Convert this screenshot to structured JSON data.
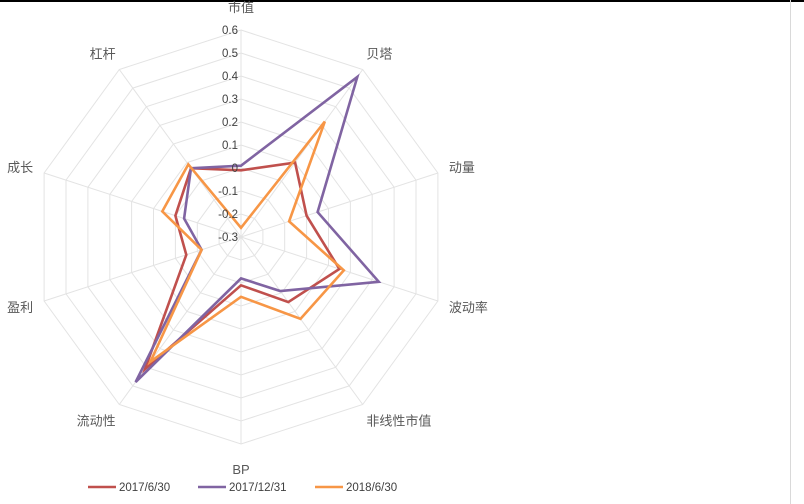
{
  "chart_data": {
    "type": "radar",
    "categories": [
      "市值",
      "贝塔",
      "动量",
      "波动率",
      "非线性市值",
      "BP",
      "流动性",
      "盈利",
      "成长",
      "杠杆"
    ],
    "rticks": [
      "0.6",
      "0.5",
      "0.4",
      "0.3",
      "0.2",
      "0.1",
      "0",
      "-0.1",
      "-0.2",
      "-0.3"
    ],
    "rlim": [
      -0.3,
      0.6
    ],
    "grid": true,
    "legend_position": "bottom",
    "series": [
      {
        "name": "2017/6/30",
        "color": "#c0504d",
        "values": [
          -0.01,
          0.1,
          0.0,
          0.15,
          0.05,
          -0.09,
          0.41,
          -0.05,
          0.0,
          0.07
        ]
      },
      {
        "name": "2017/12/31",
        "color": "#8064a2",
        "values": [
          0.01,
          0.56,
          0.05,
          0.33,
          -0.01,
          -0.12,
          0.48,
          -0.12,
          -0.04,
          0.07
        ]
      },
      {
        "name": "2018/6/30",
        "color": "#f79646",
        "values": [
          -0.26,
          0.32,
          -0.08,
          0.17,
          0.14,
          -0.04,
          0.37,
          -0.12,
          0.06,
          0.09
        ]
      }
    ]
  }
}
